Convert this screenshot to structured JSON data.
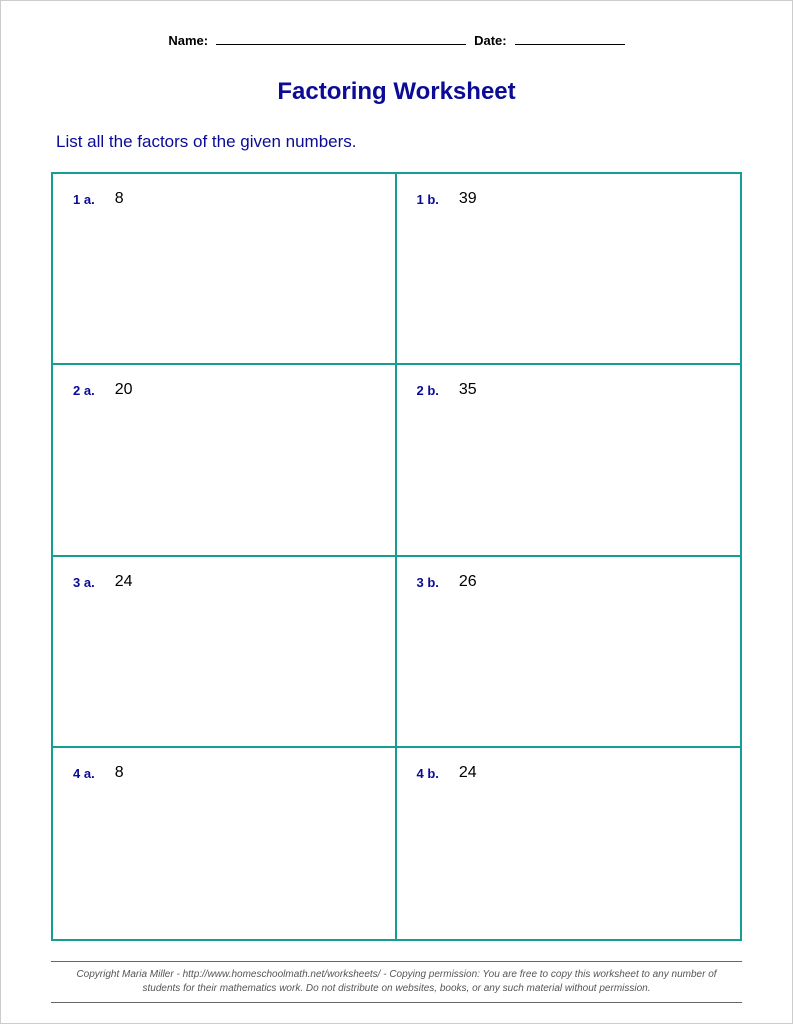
{
  "header": {
    "name_label": "Name:",
    "date_label": "Date:"
  },
  "title": "Factoring Worksheet",
  "instruction": "List all the factors of the given numbers.",
  "questions": [
    {
      "label": "1 a.",
      "value": "8"
    },
    {
      "label": "1 b.",
      "value": "39"
    },
    {
      "label": "2 a.",
      "value": "20"
    },
    {
      "label": "2 b.",
      "value": "35"
    },
    {
      "label": "3 a.",
      "value": "24"
    },
    {
      "label": "3 b.",
      "value": "26"
    },
    {
      "label": "4 a.",
      "value": "8"
    },
    {
      "label": "4 b.",
      "value": "24"
    }
  ],
  "footer": "Copyright Maria Miller - http://www.homeschoolmath.net/worksheets/ - Copying permission: You are free to copy this worksheet to any number of students for their mathematics work. Do not distribute on websites, books, or any such material without permission.",
  "colors": {
    "title_color": "#0b0b96",
    "instruction_color": "#0b0b96",
    "label_color": "#0b0b96",
    "border_color": "#179e94",
    "text_color": "#000000",
    "footer_color": "#555555",
    "background": "#ffffff"
  }
}
